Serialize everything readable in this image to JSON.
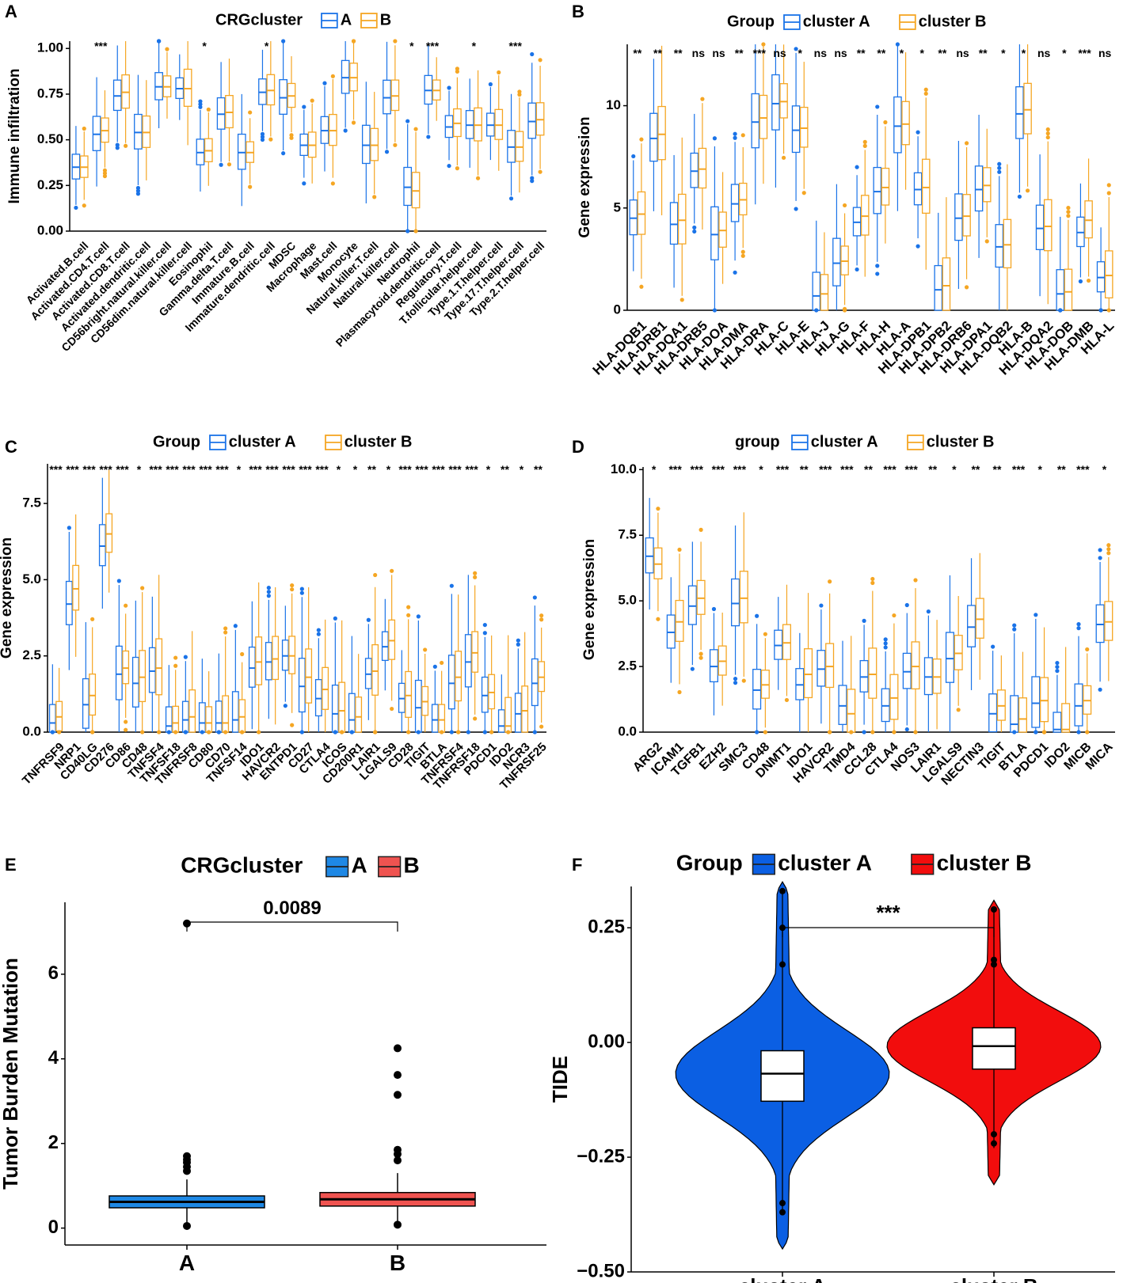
{
  "colors": {
    "clusterA": "#1a73e8",
    "clusterB": "#f5a623",
    "violinA": "#0b5fe3",
    "violinB": "#f20d0d",
    "boxA_E": "#1e88e5",
    "boxB_E": "#ef5350"
  },
  "chart_data": [
    {
      "panel": "A",
      "type": "box",
      "title": "",
      "legend_title": "CRGcluster",
      "legend": [
        "A",
        "B"
      ],
      "ylabel": "Immune infiltration",
      "xlabel": "",
      "ylim": [
        0,
        1.04
      ],
      "yticks": [
        0.0,
        0.25,
        0.5,
        0.75,
        1.0
      ],
      "ytick_labels": [
        "0.00",
        "0.25",
        "0.50",
        "0.75",
        "1.00"
      ],
      "categories": [
        "Activated.B.cell",
        "Activated.CD4.T.cell",
        "Activated.CD8.T.cell",
        "Activated.dendritic.cell",
        "CD56bright.natural.killer.cell",
        "CD56dim.natural.killer.cell",
        "Eosinophil",
        "Gamma.delta.T.cell",
        "Immature.B.cell",
        "Immature.dendritic.cell",
        "MDSC",
        "Macrophage",
        "Mast.cell",
        "Monocyte",
        "Natural.killer.T.cell",
        "Natural.killer.cell",
        "Neutrophil",
        "Plasmacytoid.dendritic.cell",
        "Regulatory.T.cell",
        "T.follicular.helper.cell",
        "Type.1.T.helper.cell",
        "Type.17.T.helper.cell",
        "Type.2.T.helper.cell"
      ],
      "significance": [
        "",
        "***",
        "",
        "",
        "",
        "",
        "*",
        "",
        "",
        "*",
        "",
        "",
        "",
        "",
        "",
        "",
        "*",
        "***",
        "",
        "*",
        "",
        "***",
        ""
      ],
      "medians_A": [
        0.35,
        0.53,
        0.74,
        0.54,
        0.79,
        0.78,
        0.43,
        0.64,
        0.43,
        0.76,
        0.73,
        0.47,
        0.55,
        0.84,
        0.47,
        0.73,
        0.24,
        0.77,
        0.57,
        0.58,
        0.58,
        0.46,
        0.6
      ],
      "medians_B": [
        0.35,
        0.55,
        0.76,
        0.54,
        0.79,
        0.78,
        0.44,
        0.65,
        0.43,
        0.77,
        0.74,
        0.47,
        0.55,
        0.84,
        0.47,
        0.74,
        0.22,
        0.77,
        0.59,
        0.58,
        0.58,
        0.46,
        0.61
      ]
    },
    {
      "panel": "B",
      "type": "box",
      "legend_title": "Group",
      "legend": [
        "cluster A",
        "cluster B"
      ],
      "ylabel": "Gene expression",
      "xlabel": "",
      "ylim": [
        0,
        13
      ],
      "yticks": [
        0,
        5,
        10
      ],
      "ytick_labels": [
        "0",
        "5",
        "10"
      ],
      "categories": [
        "HLA-DQB1",
        "HLA-DRB1",
        "HLA-DQA1",
        "HLA-DRB5",
        "HLA-DOA",
        "HLA-DMA",
        "HLA-DRA",
        "HLA-C",
        "HLA-E",
        "HLA-J",
        "HLA-G",
        "HLA-F",
        "HLA-H",
        "HLA-A",
        "HLA-DPB1",
        "HLA-DPB2",
        "HLA-DRB6",
        "HLA-DPA1",
        "HLA-DQB2",
        "HLA-B",
        "HLA-DQA2",
        "HLA-DOB",
        "HLA-DMB",
        "HLA-L"
      ],
      "significance": [
        "**",
        "**",
        "**",
        "ns",
        "ns",
        "**",
        "***",
        "ns",
        "*",
        "ns",
        "ns",
        "**",
        "**",
        "*",
        "*",
        "**",
        "ns",
        "**",
        "*",
        "*",
        "ns",
        "*",
        "***",
        "ns"
      ],
      "medians_A": [
        4.5,
        8.4,
        4.2,
        6.8,
        3.7,
        5.2,
        9.2,
        10.1,
        8.8,
        0.7,
        2.3,
        4.3,
        5.8,
        9.0,
        5.9,
        1.0,
        4.5,
        5.9,
        3.1,
        9.6,
        4.0,
        0.8,
        3.8,
        1.6
      ],
      "medians_B": [
        4.7,
        8.6,
        4.4,
        6.9,
        3.9,
        5.4,
        9.4,
        10.2,
        8.9,
        0.8,
        2.4,
        4.6,
        6.0,
        9.1,
        6.0,
        1.2,
        4.6,
        6.1,
        3.2,
        9.8,
        4.1,
        0.9,
        4.4,
        1.7
      ]
    },
    {
      "panel": "C",
      "type": "box",
      "legend_title": "Group",
      "legend": [
        "cluster A",
        "cluster B"
      ],
      "ylabel": "Gene expression",
      "xlabel": "",
      "ylim": [
        0,
        8.8
      ],
      "yticks": [
        0,
        2.5,
        5.0,
        7.5
      ],
      "ytick_labels": [
        "0.0",
        "2.5",
        "5.0",
        "7.5"
      ],
      "categories": [
        "TNFRSF9",
        "NRP1",
        "CD40LG",
        "CD276",
        "CD86",
        "CD48",
        "TNFSF4",
        "TNFSF18",
        "TNFRSF8",
        "CD80",
        "CD70",
        "TNFSF14",
        "IDO1",
        "HAVCR2",
        "ENTPD1",
        "CD27",
        "CTLA4",
        "ICOS",
        "CD200R1",
        "LAIR1",
        "LGALS9",
        "CD28",
        "TIGIT",
        "BTLA",
        "TNFRSF4",
        "TNFRSF18",
        "PDCD1",
        "IDO2",
        "NCR3",
        "TNFRSF25"
      ],
      "significance": [
        "***",
        "***",
        "***",
        "***",
        "***",
        "*",
        "***",
        "***",
        "***",
        "***",
        "***",
        "*",
        "***",
        "***",
        "***",
        "***",
        "***",
        "*",
        "*",
        "**",
        "*",
        "***",
        "***",
        "***",
        "***",
        "***",
        "*",
        "**",
        "*",
        "**"
      ],
      "medians_A": [
        0.3,
        4.2,
        0.9,
        6.1,
        1.9,
        1.6,
        2.0,
        0.2,
        0.4,
        0.3,
        0.3,
        0.4,
        2.1,
        2.3,
        2.5,
        1.5,
        1.1,
        0.6,
        0.4,
        1.9,
        2.8,
        1.1,
        0.8,
        0.4,
        1.6,
        2.3,
        1.2,
        0.2,
        0.6,
        1.6
      ],
      "medians_B": [
        0.5,
        4.7,
        1.2,
        6.5,
        2.1,
        1.8,
        2.1,
        0.3,
        0.5,
        0.3,
        0.3,
        0.5,
        2.3,
        2.4,
        2.5,
        1.8,
        1.4,
        0.7,
        0.5,
        2.0,
        3.0,
        1.2,
        1.0,
        0.4,
        1.8,
        2.6,
        1.3,
        0.2,
        0.7,
        1.8
      ]
    },
    {
      "panel": "D",
      "type": "box",
      "legend_title": "group",
      "legend": [
        "cluster A",
        "cluster B"
      ],
      "ylabel": "Gene expression",
      "xlabel": "",
      "ylim": [
        0,
        10.1
      ],
      "yticks": [
        0,
        2.5,
        5.0,
        7.5,
        10.0
      ],
      "ytick_labels": [
        "0.0",
        "2.5",
        "5.0",
        "7.5",
        "10.0"
      ],
      "categories": [
        "ARG2",
        "ICAM1",
        "TGFB1",
        "EZH2",
        "SMC3",
        "CD48",
        "DNMT1",
        "IDO1",
        "HAVCR2",
        "TIMD4",
        "CCL28",
        "CTLA4",
        "NOS3",
        "LAIR1",
        "LGALS9",
        "NECTIN3",
        "TIGIT",
        "BTLA",
        "PDCD1",
        "IDO2",
        "MICB",
        "MICA"
      ],
      "significance": [
        "*",
        "***",
        "***",
        "***",
        "***",
        "*",
        "***",
        "**",
        "***",
        "***",
        "**",
        "***",
        "***",
        "**",
        "*",
        "**",
        "**",
        "***",
        "*",
        "**",
        "***",
        "*"
      ],
      "medians_A": [
        6.7,
        3.8,
        4.8,
        2.5,
        4.9,
        1.6,
        3.3,
        1.8,
        2.4,
        1.0,
        2.1,
        1.0,
        2.3,
        2.1,
        2.8,
        4.0,
        0.7,
        0.3,
        1.1,
        0.1,
        1.0,
        4.1
      ],
      "medians_B": [
        6.4,
        4.2,
        5.1,
        2.7,
        5.1,
        1.8,
        3.4,
        2.2,
        2.5,
        0.7,
        2.2,
        1.3,
        2.5,
        2.1,
        3.0,
        4.3,
        1.0,
        0.5,
        1.2,
        0.1,
        1.2,
        4.2
      ]
    },
    {
      "panel": "E",
      "type": "box",
      "legend_title": "CRGcluster",
      "legend": [
        "A",
        "B"
      ],
      "ylabel": "Tumor Burden Mutation",
      "xlabel": "",
      "categories": [
        "A",
        "B"
      ],
      "ylim": [
        -0.4,
        7.7
      ],
      "yticks": [
        0,
        2,
        4,
        6
      ],
      "ytick_labels": [
        "0",
        "2",
        "4",
        "6"
      ],
      "p_value_label": "0.0089",
      "boxes": [
        {
          "name": "A",
          "q1": 0.48,
          "median": 0.62,
          "q3": 0.76,
          "whisker_low": 0.05,
          "whisker_high": 1.15,
          "outliers": [
            1.35,
            1.45,
            1.55,
            1.62,
            1.7,
            7.2
          ]
        },
        {
          "name": "B",
          "q1": 0.52,
          "median": 0.68,
          "q3": 0.84,
          "whisker_low": 0.08,
          "whisker_high": 1.3,
          "outliers": [
            1.6,
            1.75,
            1.85,
            3.15,
            3.62,
            4.25
          ]
        }
      ]
    },
    {
      "panel": "F",
      "type": "violin",
      "legend_title": "Group",
      "legend": [
        "cluster A",
        "cluster B"
      ],
      "ylabel": "TIDE",
      "xlabel": "",
      "categories": [
        "cluster A",
        "cluster B"
      ],
      "ylim": [
        -0.5,
        0.34
      ],
      "yticks": [
        -0.5,
        -0.25,
        0.0,
        0.25
      ],
      "ytick_labels": [
        "−0.50",
        "−0.25",
        "0.00",
        "0.25"
      ],
      "significance_label": "***",
      "boxes": [
        {
          "name": "cluster A",
          "q1": -0.128,
          "median": -0.068,
          "q3": -0.018,
          "whisker_low": -0.37,
          "whisker_high": 0.33,
          "outliers": [
            -0.35,
            -0.37,
            0.17,
            0.25,
            0.33
          ]
        },
        {
          "name": "cluster B",
          "q1": -0.058,
          "median": -0.008,
          "q3": 0.032,
          "whisker_low": -0.23,
          "whisker_high": 0.29,
          "outliers": [
            -0.2,
            -0.22,
            0.17,
            0.18,
            0.29
          ]
        }
      ]
    }
  ]
}
